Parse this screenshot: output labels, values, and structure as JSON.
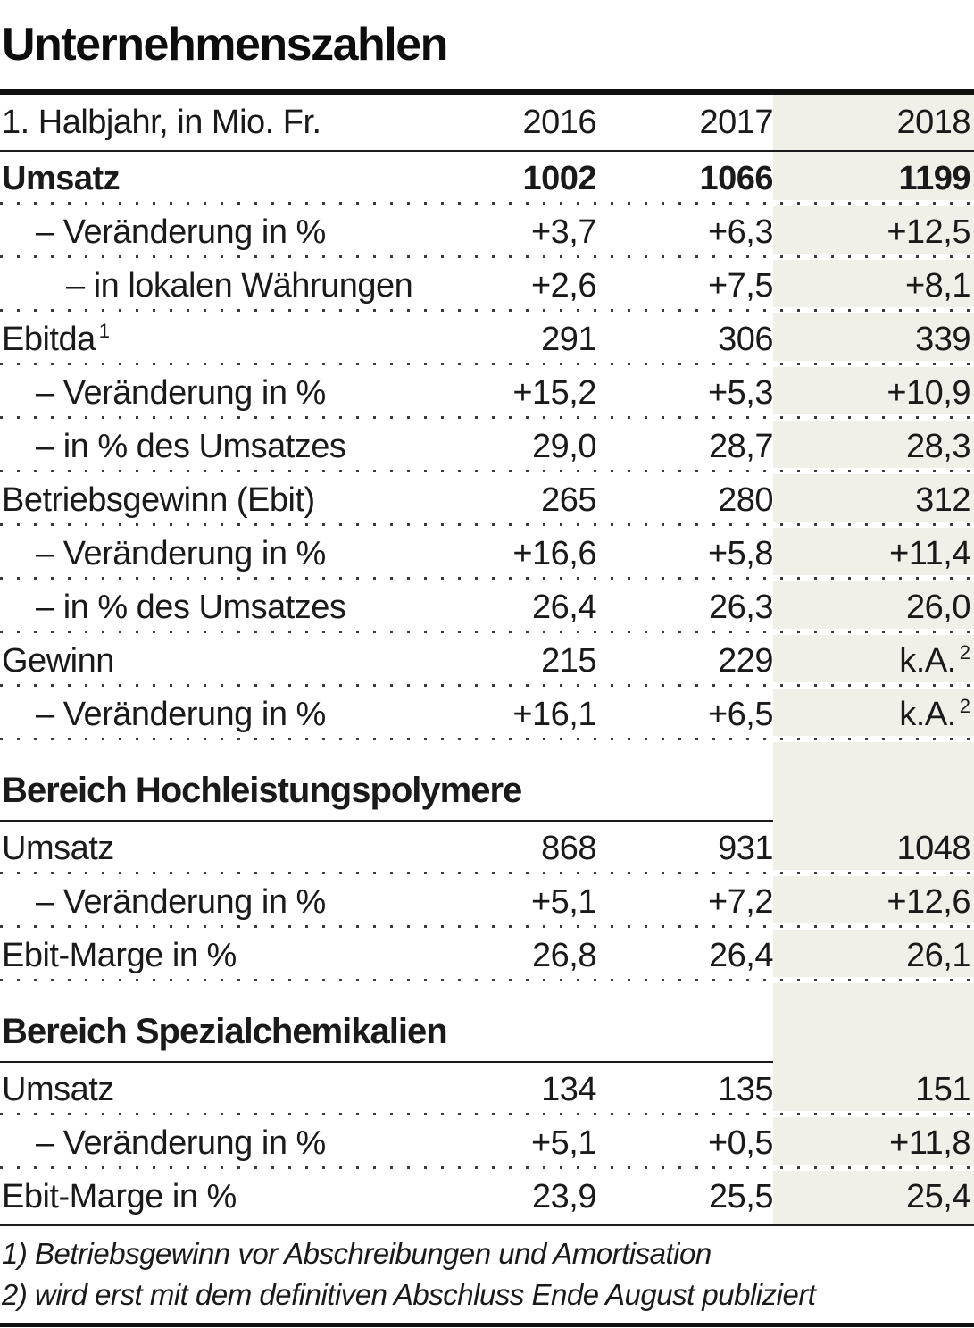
{
  "title": "Unternehmenszahlen",
  "table": {
    "highlight_color": "#f0efe8",
    "header": {
      "label": "1. Halbjahr, in Mio. Fr.",
      "years": [
        "2016",
        "2017",
        "2018"
      ]
    },
    "sections": [
      {
        "heading": null,
        "rows": [
          {
            "label": "Umsatz",
            "label_sup": "",
            "indent": 0,
            "bold": true,
            "values": [
              {
                "v": "1002",
                "sup": ""
              },
              {
                "v": "1066",
                "sup": ""
              },
              {
                "v": "1199",
                "sup": ""
              }
            ]
          },
          {
            "label": "– Veränderung in %",
            "label_sup": "",
            "indent": 1,
            "bold": false,
            "values": [
              {
                "v": "+3,7",
                "sup": ""
              },
              {
                "v": "+6,3",
                "sup": ""
              },
              {
                "v": "+12,5",
                "sup": ""
              }
            ]
          },
          {
            "label": "– in lokalen Währungen",
            "label_sup": "",
            "indent": 2,
            "bold": false,
            "values": [
              {
                "v": "+2,6",
                "sup": ""
              },
              {
                "v": "+7,5",
                "sup": ""
              },
              {
                "v": "+8,1",
                "sup": ""
              }
            ]
          },
          {
            "label": "Ebitda",
            "label_sup": "1",
            "indent": 0,
            "bold": false,
            "values": [
              {
                "v": "291",
                "sup": ""
              },
              {
                "v": "306",
                "sup": ""
              },
              {
                "v": "339",
                "sup": ""
              }
            ]
          },
          {
            "label": "– Veränderung in %",
            "label_sup": "",
            "indent": 1,
            "bold": false,
            "values": [
              {
                "v": "+15,2",
                "sup": ""
              },
              {
                "v": "+5,3",
                "sup": ""
              },
              {
                "v": "+10,9",
                "sup": ""
              }
            ]
          },
          {
            "label": "– in % des Umsatzes",
            "label_sup": "",
            "indent": 1,
            "bold": false,
            "values": [
              {
                "v": "29,0",
                "sup": ""
              },
              {
                "v": "28,7",
                "sup": ""
              },
              {
                "v": "28,3",
                "sup": ""
              }
            ]
          },
          {
            "label": "Betriebsgewinn (Ebit)",
            "label_sup": "",
            "indent": 0,
            "bold": false,
            "values": [
              {
                "v": "265",
                "sup": ""
              },
              {
                "v": "280",
                "sup": ""
              },
              {
                "v": "312",
                "sup": ""
              }
            ]
          },
          {
            "label": "– Veränderung in %",
            "label_sup": "",
            "indent": 1,
            "bold": false,
            "values": [
              {
                "v": "+16,6",
                "sup": ""
              },
              {
                "v": "+5,8",
                "sup": ""
              },
              {
                "v": "+11,4",
                "sup": ""
              }
            ]
          },
          {
            "label": "– in % des Umsatzes",
            "label_sup": "",
            "indent": 1,
            "bold": false,
            "values": [
              {
                "v": "26,4",
                "sup": ""
              },
              {
                "v": "26,3",
                "sup": ""
              },
              {
                "v": "26,0",
                "sup": ""
              }
            ]
          },
          {
            "label": "Gewinn",
            "label_sup": "",
            "indent": 0,
            "bold": false,
            "values": [
              {
                "v": "215",
                "sup": ""
              },
              {
                "v": "229",
                "sup": ""
              },
              {
                "v": "k.A.",
                "sup": "2"
              }
            ]
          },
          {
            "label": "– Veränderung in %",
            "label_sup": "",
            "indent": 1,
            "bold": false,
            "values": [
              {
                "v": "+16,1",
                "sup": ""
              },
              {
                "v": "+6,5",
                "sup": ""
              },
              {
                "v": "k.A.",
                "sup": "2"
              }
            ]
          }
        ]
      },
      {
        "heading": "Bereich Hochleistungspolymere",
        "rows": [
          {
            "label": "Umsatz",
            "label_sup": "",
            "indent": 0,
            "bold": false,
            "values": [
              {
                "v": "868",
                "sup": ""
              },
              {
                "v": "931",
                "sup": ""
              },
              {
                "v": "1048",
                "sup": ""
              }
            ]
          },
          {
            "label": "– Veränderung in %",
            "label_sup": "",
            "indent": 1,
            "bold": false,
            "values": [
              {
                "v": "+5,1",
                "sup": ""
              },
              {
                "v": "+7,2",
                "sup": ""
              },
              {
                "v": "+12,6",
                "sup": ""
              }
            ]
          },
          {
            "label": "Ebit-Marge in %",
            "label_sup": "",
            "indent": 0,
            "bold": false,
            "values": [
              {
                "v": "26,8",
                "sup": ""
              },
              {
                "v": "26,4",
                "sup": ""
              },
              {
                "v": "26,1",
                "sup": ""
              }
            ]
          }
        ]
      },
      {
        "heading": "Bereich Spezialchemikalien",
        "rows": [
          {
            "label": "Umsatz",
            "label_sup": "",
            "indent": 0,
            "bold": false,
            "values": [
              {
                "v": "134",
                "sup": ""
              },
              {
                "v": "135",
                "sup": ""
              },
              {
                "v": "151",
                "sup": ""
              }
            ]
          },
          {
            "label": "– Veränderung in %",
            "label_sup": "",
            "indent": 1,
            "bold": false,
            "values": [
              {
                "v": "+5,1",
                "sup": ""
              },
              {
                "v": "+0,5",
                "sup": ""
              },
              {
                "v": "+11,8",
                "sup": ""
              }
            ]
          },
          {
            "label": "Ebit-Marge in %",
            "label_sup": "",
            "indent": 0,
            "bold": false,
            "values": [
              {
                "v": "23,9",
                "sup": ""
              },
              {
                "v": "25,5",
                "sup": ""
              },
              {
                "v": "25,4",
                "sup": ""
              }
            ]
          }
        ]
      }
    ]
  },
  "footnotes": [
    "1) Betriebsgewinn vor Abschreibungen und Amortisation",
    "2) wird erst mit dem definitiven Abschluss Ende August publiziert"
  ]
}
